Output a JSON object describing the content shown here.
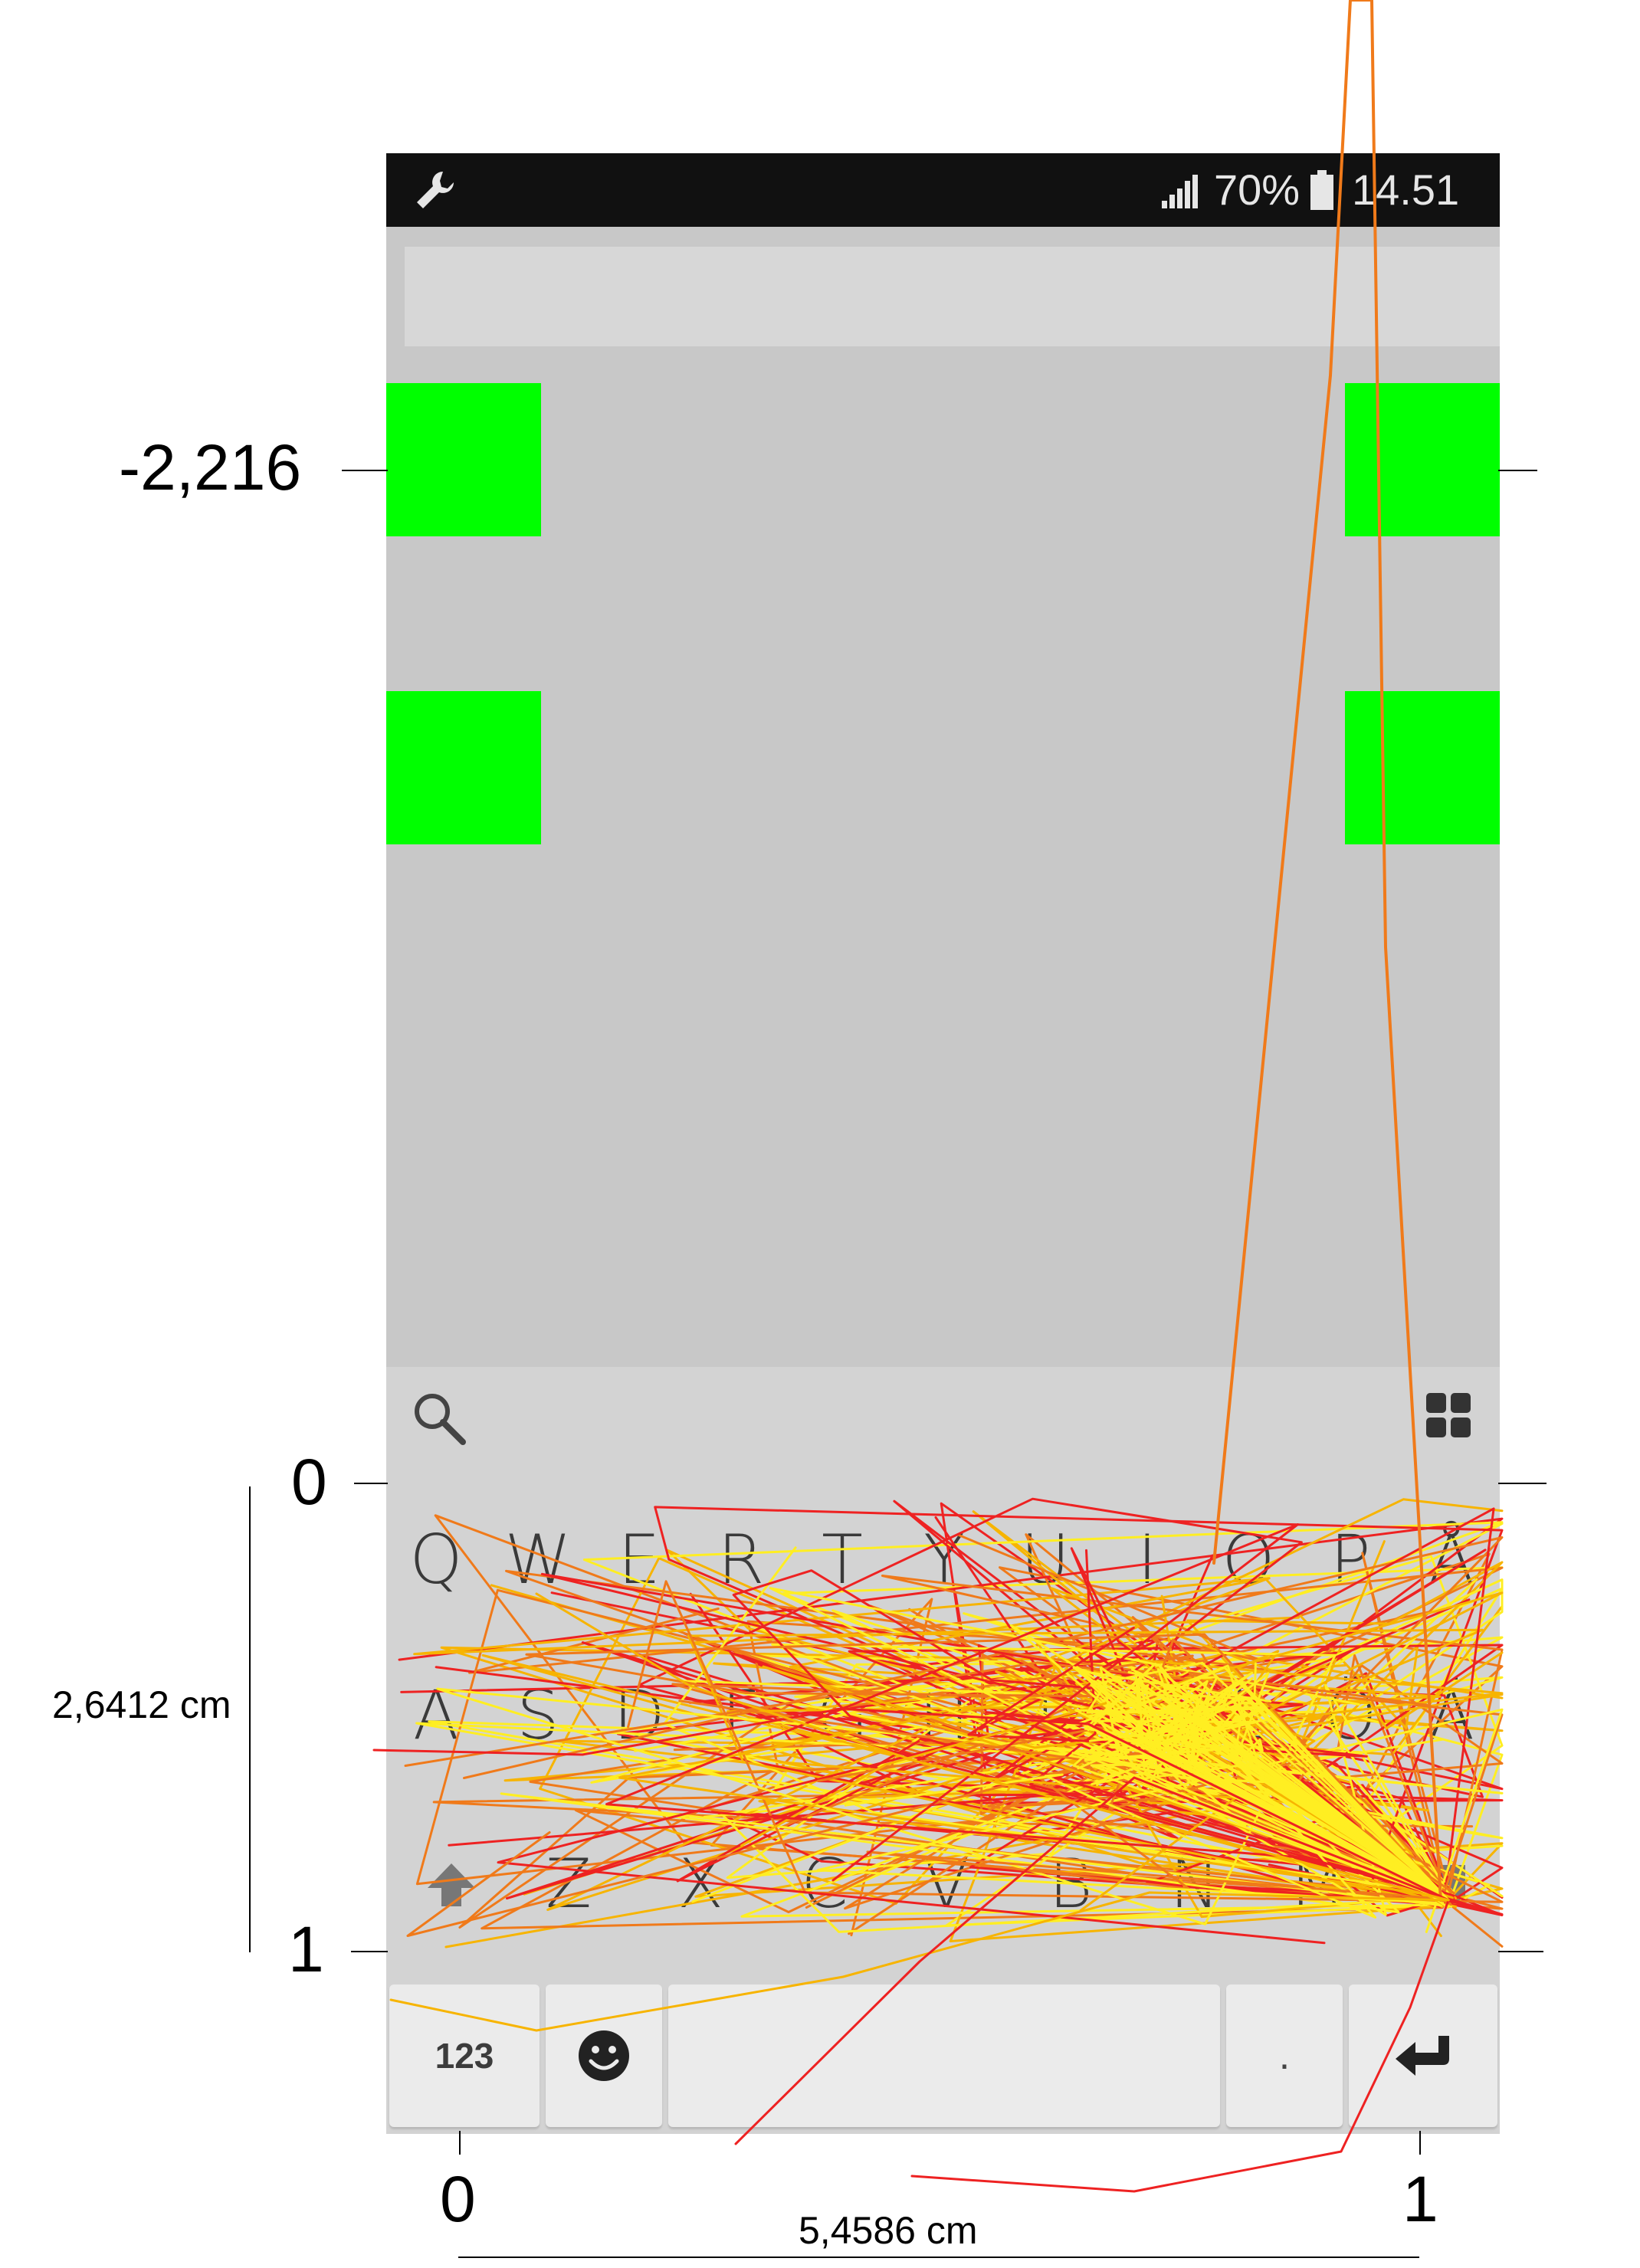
{
  "status_bar": {
    "signal_icon": "signal-bars-icon",
    "battery_percent": "70%",
    "battery_icon": "battery-icon",
    "time": "14.51",
    "left_icon": "wrench-icon"
  },
  "keyboard": {
    "row1": [
      "Q",
      "W",
      "E",
      "R",
      "T",
      "Y",
      "U",
      "I",
      "O",
      "P",
      "Å"
    ],
    "row2": [
      "A",
      "S",
      "D",
      "F",
      "G",
      "H",
      "J",
      "K",
      "L",
      "Ö",
      "Ä"
    ],
    "row3": [
      "Z",
      "X",
      "C",
      "V",
      "B",
      "N",
      "M"
    ],
    "numbers_key": "123",
    "period_key": ".",
    "search_icon": "search-icon",
    "apps_icon": "grid-icon",
    "shift_icon": "shift-arrow-icon",
    "emoji_icon": "smiley-icon",
    "enter_icon": "enter-arrow-icon",
    "backspace_icon": "backspace-icon"
  },
  "annotations": {
    "y_top_label": "-2,216",
    "y_zero_label": "0",
    "y_one_label": "1",
    "height_label": "2,6412 cm",
    "x_zero_label": "0",
    "x_one_label": "1",
    "width_label": "5,4586 cm"
  },
  "colors": {
    "target": "#00ff00",
    "trace_red": "#ee2222",
    "trace_orange": "#f07a1a",
    "trace_amber": "#f7b400",
    "trace_yellow": "#ffee22"
  }
}
